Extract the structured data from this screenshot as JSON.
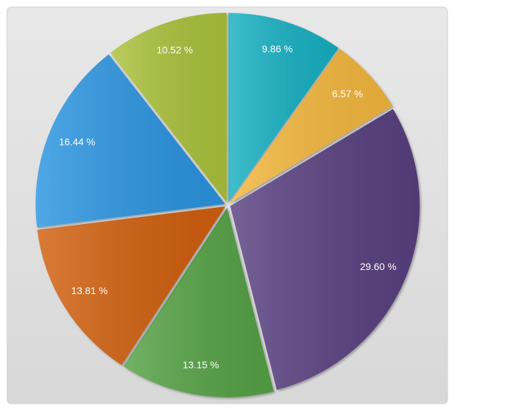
{
  "chart_data": {
    "type": "pie",
    "values": [
      9.86,
      6.57,
      29.6,
      13.15,
      13.81,
      16.44,
      10.52
    ],
    "value_labels": [
      "9.86 %",
      "6.57 %",
      "29.60 %",
      "13.15 %",
      "13.81 %",
      "16.44 %",
      "10.52 %"
    ],
    "colors": [
      "#14b0c2",
      "#f4b73c",
      "#584080",
      "#55a245",
      "#d15f10",
      "#2a94e0",
      "#abc23a"
    ]
  }
}
